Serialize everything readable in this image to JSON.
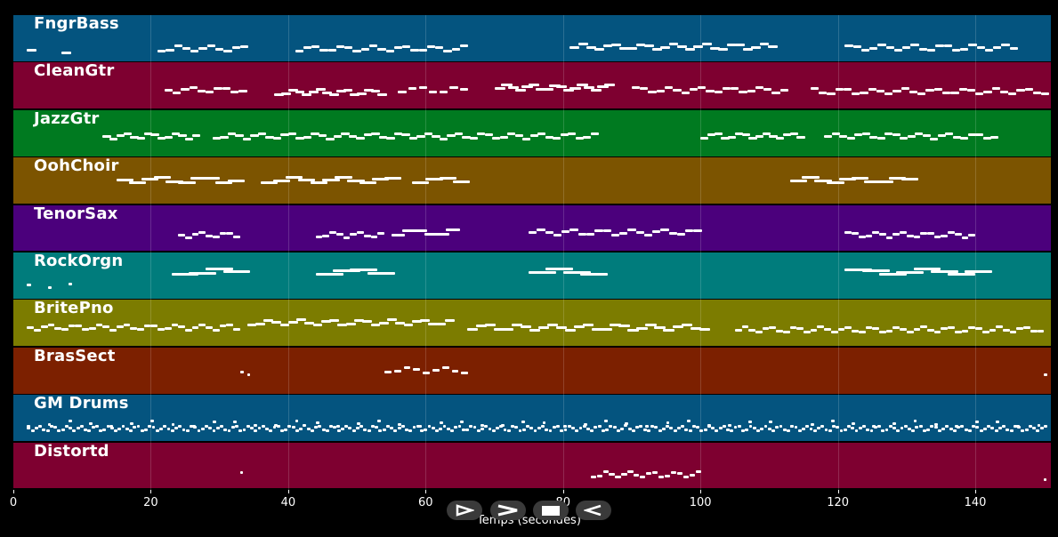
{
  "tracks": [
    {
      "name": "FngrBass",
      "color": "#04547f"
    },
    {
      "name": "CleanGtr",
      "color": "#7e0030"
    },
    {
      "name": "JazzGtr",
      "color": "#007a20"
    },
    {
      "name": "OohChoir",
      "color": "#7c5400"
    },
    {
      "name": "TenorSax",
      "color": "#4b007c"
    },
    {
      "name": "RockOrgn",
      "color": "#007c7c"
    },
    {
      "name": "BritePno",
      "color": "#7c7c00"
    },
    {
      "name": "BrasSect",
      "color": "#7c2000"
    },
    {
      "name": "GM Drums",
      "color": "#04547f"
    },
    {
      "name": "Distortd",
      "color": "#7e0030"
    }
  ],
  "axis": {
    "xlabel": "Temps (secondes)",
    "xlim": [
      0,
      151
    ],
    "ticks": [
      "0",
      "20",
      "40",
      "60",
      "80",
      "100",
      "120",
      "140"
    ]
  },
  "controls": {
    "play": "play-icon",
    "forward": "forward-icon",
    "stop": "stop-icon",
    "rewind": "rewind-icon"
  }
}
